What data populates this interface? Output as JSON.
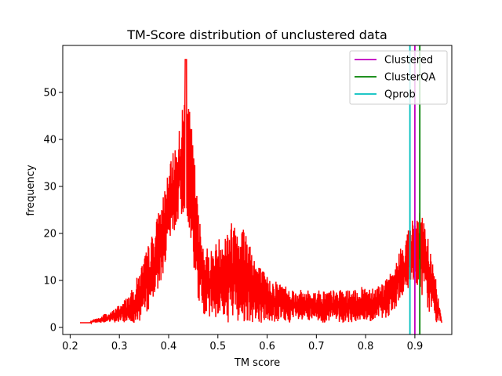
{
  "chart_data": {
    "type": "line",
    "title": "TM-Score distribution of unclustered data",
    "xlabel": "TM score",
    "ylabel": "frequency",
    "xlim": [
      0.185,
      0.975
    ],
    "ylim": [
      -1.5,
      60
    ],
    "xticks": [
      0.2,
      0.3,
      0.4,
      0.5,
      0.6,
      0.7,
      0.8,
      0.9
    ],
    "xtick_labels": [
      "0.2",
      "0.3",
      "0.4",
      "0.5",
      "0.6",
      "0.7",
      "0.8",
      "0.9"
    ],
    "yticks": [
      0,
      10,
      20,
      30,
      40,
      50
    ],
    "ytick_labels": [
      "0",
      "10",
      "20",
      "30",
      "40",
      "50"
    ],
    "grid": false,
    "legend_position": "top-right",
    "series": [
      {
        "color": "#ff0000",
        "kind": "noisy-distribution",
        "x": [
          0.22,
          0.24,
          0.25,
          0.26,
          0.27,
          0.28,
          0.29,
          0.3,
          0.31,
          0.32,
          0.33,
          0.34,
          0.35,
          0.36,
          0.37,
          0.38,
          0.39,
          0.4,
          0.41,
          0.42,
          0.43,
          0.435,
          0.44,
          0.45,
          0.46,
          0.47,
          0.48,
          0.49,
          0.5,
          0.52,
          0.54,
          0.56,
          0.58,
          0.6,
          0.62,
          0.64,
          0.66,
          0.68,
          0.7,
          0.72,
          0.74,
          0.76,
          0.78,
          0.8,
          0.82,
          0.84,
          0.86,
          0.87,
          0.88,
          0.89,
          0.9,
          0.91,
          0.92,
          0.93,
          0.94,
          0.95,
          0.955
        ],
        "upper": [
          1,
          1,
          2,
          2,
          3,
          3,
          4,
          5,
          6,
          7,
          9,
          12,
          15,
          18,
          21,
          25,
          29,
          33,
          38,
          42,
          48,
          57,
          48,
          40,
          25,
          19,
          17,
          17,
          19,
          22,
          24,
          21,
          14,
          11,
          10,
          9,
          8,
          8,
          8,
          8,
          8,
          8,
          8,
          9,
          9,
          10,
          13,
          17,
          19,
          22,
          24,
          25,
          22,
          18,
          12,
          5,
          1
        ],
        "lower": [
          1,
          1,
          1,
          1,
          1,
          1,
          1,
          1,
          1,
          1,
          1,
          1,
          2,
          4,
          6,
          8,
          12,
          16,
          20,
          22,
          24,
          25,
          22,
          12,
          5,
          3,
          2,
          2,
          2,
          1,
          1,
          1,
          1,
          1,
          1,
          1,
          1,
          1,
          1,
          1,
          1,
          1,
          1,
          1,
          1,
          2,
          3,
          5,
          7,
          9,
          10,
          8,
          5,
          3,
          1,
          1,
          1
        ]
      }
    ],
    "vlines": [
      {
        "name": "Clustered",
        "x": 0.9,
        "color": "#bf00bf"
      },
      {
        "name": "ClusterQA",
        "x": 0.91,
        "color": "#008000"
      },
      {
        "name": "Qprob",
        "x": 0.89,
        "color": "#00bfbf"
      }
    ]
  }
}
